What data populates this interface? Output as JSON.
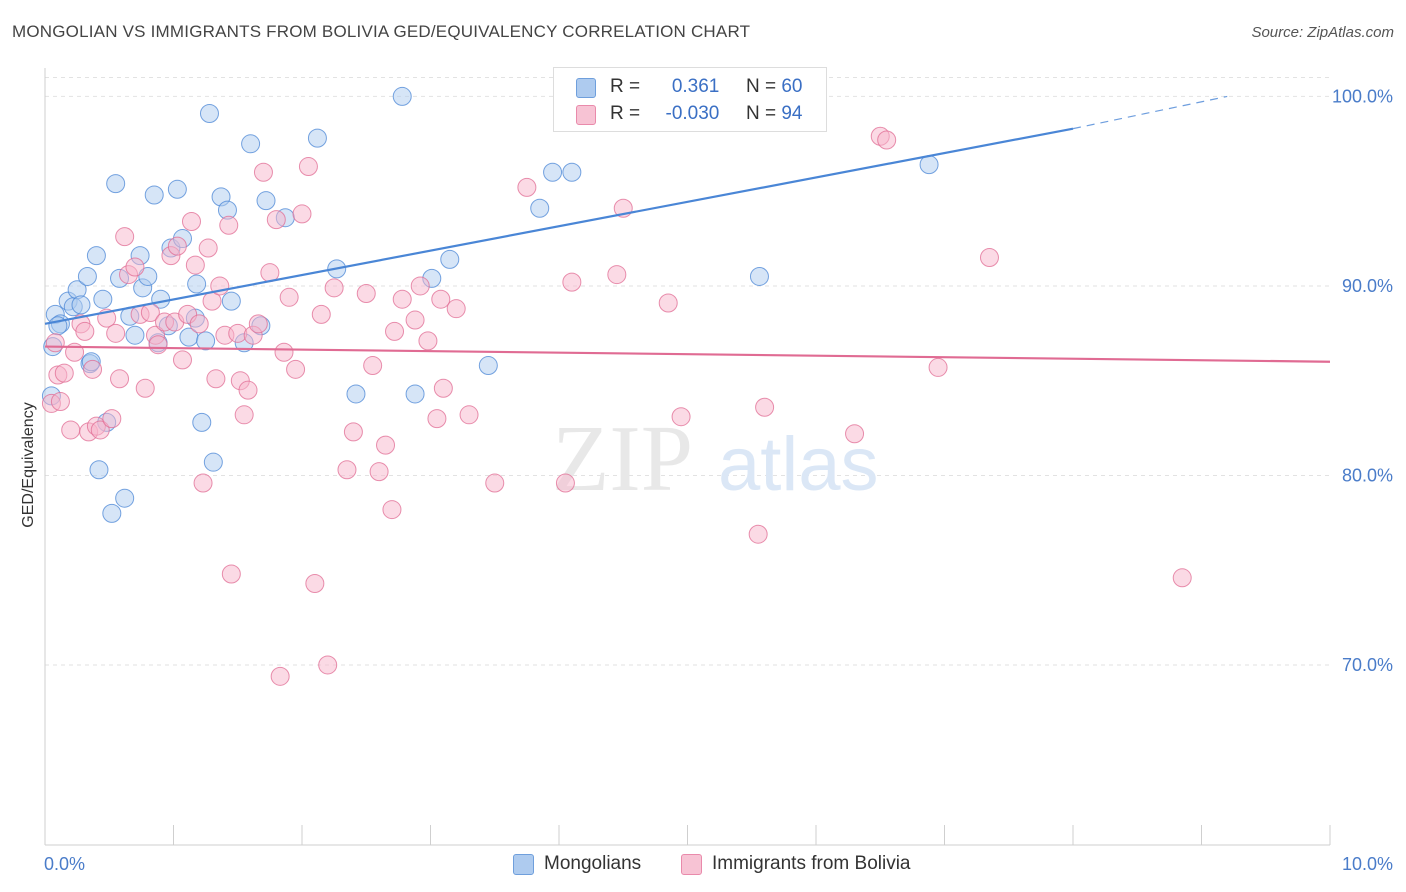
{
  "title": "MONGOLIAN VS IMMIGRANTS FROM BOLIVIA GED/EQUIVALENCY CORRELATION CHART",
  "source": "Source: ZipAtlas.com",
  "watermark": {
    "zip": "ZIP",
    "atlas": "atlas"
  },
  "legend": {
    "rows": [
      {
        "r_label": "R = ",
        "r_value": "0.361",
        "n_label": "N = ",
        "n_value": "60",
        "color": "#aecbef"
      },
      {
        "r_label": "R = ",
        "r_value": "-0.030",
        "n_label": "N = ",
        "n_value": "94",
        "color": "#f7b6cb"
      }
    ],
    "bottom": [
      {
        "label": "Mongolians",
        "color": "#aecbef"
      },
      {
        "label": "Immigrants from Bolivia",
        "color": "#f7b6cb"
      }
    ]
  },
  "chart_data": {
    "type": "scatter",
    "title": "MONGOLIAN VS IMMIGRANTS FROM BOLIVIA GED/EQUIVALENCY CORRELATION CHART",
    "xlabel": "",
    "ylabel": "GED/Equivalency",
    "xlim": [
      0,
      10
    ],
    "ylim": [
      60.5,
      101.5
    ],
    "x_tick_labels": [
      "0.0%",
      "10.0%"
    ],
    "y_ticks": [
      70,
      80,
      90,
      100
    ],
    "y_tick_labels": [
      "70.0%",
      "80.0%",
      "90.0%",
      "100.0%"
    ],
    "series": [
      {
        "name": "Mongolians",
        "color": "#4a86d6",
        "fill": "#aecbef",
        "trend": {
          "x": [
            0,
            8.0
          ],
          "y": [
            88.0,
            98.3
          ],
          "dash_to": [
            9.2,
            100.0
          ]
        },
        "points": [
          [
            0.05,
            84.2
          ],
          [
            0.08,
            88.5
          ],
          [
            0.12,
            88.0
          ],
          [
            0.18,
            89.2
          ],
          [
            0.22,
            88.9
          ],
          [
            0.25,
            89.8
          ],
          [
            0.28,
            89.0
          ],
          [
            0.33,
            90.5
          ],
          [
            0.35,
            85.9
          ],
          [
            0.4,
            91.6
          ],
          [
            0.42,
            80.3
          ],
          [
            0.45,
            89.3
          ],
          [
            0.48,
            82.8
          ],
          [
            0.52,
            78.0
          ],
          [
            0.55,
            95.4
          ],
          [
            0.58,
            90.4
          ],
          [
            0.62,
            78.8
          ],
          [
            0.66,
            88.4
          ],
          [
            0.7,
            87.4
          ],
          [
            0.74,
            91.6
          ],
          [
            0.76,
            89.9
          ],
          [
            0.8,
            90.5
          ],
          [
            0.85,
            94.8
          ],
          [
            0.88,
            87.0
          ],
          [
            0.9,
            89.3
          ],
          [
            0.96,
            87.9
          ],
          [
            0.98,
            92.0
          ],
          [
            1.03,
            95.1
          ],
          [
            1.07,
            92.5
          ],
          [
            1.12,
            87.3
          ],
          [
            1.17,
            88.3
          ],
          [
            1.18,
            90.1
          ],
          [
            1.22,
            82.8
          ],
          [
            1.25,
            87.1
          ],
          [
            1.28,
            99.1
          ],
          [
            1.31,
            80.7
          ],
          [
            1.37,
            94.7
          ],
          [
            1.42,
            94.0
          ],
          [
            1.45,
            89.2
          ],
          [
            1.55,
            87.0
          ],
          [
            1.6,
            97.5
          ],
          [
            1.68,
            87.9
          ],
          [
            1.72,
            94.5
          ],
          [
            1.87,
            93.6
          ],
          [
            2.12,
            97.8
          ],
          [
            2.27,
            90.9
          ],
          [
            2.42,
            84.3
          ],
          [
            2.78,
            100.0
          ],
          [
            2.88,
            84.3
          ],
          [
            3.01,
            90.4
          ],
          [
            3.15,
            91.4
          ],
          [
            3.45,
            85.8
          ],
          [
            3.85,
            94.1
          ],
          [
            3.95,
            96.0
          ],
          [
            4.1,
            96.0
          ],
          [
            5.56,
            90.5
          ],
          [
            6.88,
            96.4
          ],
          [
            0.06,
            86.8
          ],
          [
            0.1,
            87.9
          ],
          [
            0.36,
            86.0
          ]
        ]
      },
      {
        "name": "Immigrants from Bolivia",
        "color": "#e06b93",
        "fill": "#f7b6cb",
        "trend": {
          "x": [
            0,
            10
          ],
          "y": [
            86.8,
            86.0
          ]
        },
        "points": [
          [
            0.05,
            83.8
          ],
          [
            0.08,
            87.0
          ],
          [
            0.1,
            85.3
          ],
          [
            0.15,
            85.4
          ],
          [
            0.2,
            82.4
          ],
          [
            0.23,
            86.5
          ],
          [
            0.28,
            88.0
          ],
          [
            0.31,
            87.6
          ],
          [
            0.34,
            82.3
          ],
          [
            0.37,
            85.6
          ],
          [
            0.4,
            82.6
          ],
          [
            0.43,
            82.4
          ],
          [
            0.48,
            88.3
          ],
          [
            0.52,
            83.0
          ],
          [
            0.55,
            87.5
          ],
          [
            0.58,
            85.1
          ],
          [
            0.62,
            92.6
          ],
          [
            0.65,
            90.6
          ],
          [
            0.7,
            91.0
          ],
          [
            0.74,
            88.5
          ],
          [
            0.78,
            84.6
          ],
          [
            0.82,
            88.6
          ],
          [
            0.86,
            87.4
          ],
          [
            0.88,
            86.9
          ],
          [
            0.93,
            88.1
          ],
          [
            0.98,
            91.6
          ],
          [
            1.01,
            88.1
          ],
          [
            1.03,
            92.1
          ],
          [
            1.07,
            86.1
          ],
          [
            1.11,
            88.5
          ],
          [
            1.14,
            93.4
          ],
          [
            1.17,
            91.1
          ],
          [
            1.2,
            88.0
          ],
          [
            1.23,
            79.6
          ],
          [
            1.27,
            92.0
          ],
          [
            1.3,
            89.2
          ],
          [
            1.33,
            85.1
          ],
          [
            1.36,
            90.0
          ],
          [
            1.4,
            87.4
          ],
          [
            1.43,
            93.2
          ],
          [
            1.45,
            74.8
          ],
          [
            1.5,
            87.5
          ],
          [
            1.52,
            85.0
          ],
          [
            1.55,
            83.2
          ],
          [
            1.58,
            84.5
          ],
          [
            1.62,
            87.4
          ],
          [
            1.66,
            88.0
          ],
          [
            1.7,
            96.0
          ],
          [
            1.75,
            90.7
          ],
          [
            1.8,
            93.5
          ],
          [
            1.83,
            69.4
          ],
          [
            1.86,
            86.5
          ],
          [
            1.9,
            89.4
          ],
          [
            1.95,
            85.6
          ],
          [
            2.0,
            93.8
          ],
          [
            2.05,
            96.3
          ],
          [
            2.1,
            74.3
          ],
          [
            2.15,
            88.5
          ],
          [
            2.2,
            70.0
          ],
          [
            2.25,
            89.9
          ],
          [
            2.35,
            80.3
          ],
          [
            2.4,
            82.3
          ],
          [
            2.5,
            89.6
          ],
          [
            2.55,
            85.8
          ],
          [
            2.6,
            80.2
          ],
          [
            2.65,
            81.6
          ],
          [
            2.7,
            78.2
          ],
          [
            2.72,
            87.6
          ],
          [
            2.78,
            89.3
          ],
          [
            2.88,
            88.2
          ],
          [
            2.92,
            90.0
          ],
          [
            2.98,
            87.1
          ],
          [
            3.05,
            83.0
          ],
          [
            3.08,
            89.3
          ],
          [
            3.1,
            84.6
          ],
          [
            3.2,
            88.8
          ],
          [
            3.3,
            83.2
          ],
          [
            3.5,
            79.6
          ],
          [
            3.75,
            95.2
          ],
          [
            4.05,
            79.6
          ],
          [
            4.1,
            90.2
          ],
          [
            4.45,
            90.6
          ],
          [
            4.5,
            94.1
          ],
          [
            4.85,
            89.1
          ],
          [
            4.95,
            83.1
          ],
          [
            5.55,
            76.9
          ],
          [
            5.6,
            83.6
          ],
          [
            6.3,
            82.2
          ],
          [
            6.5,
            97.9
          ],
          [
            6.55,
            97.7
          ],
          [
            6.95,
            85.7
          ],
          [
            7.35,
            91.5
          ],
          [
            8.85,
            74.6
          ],
          [
            0.12,
            83.9
          ]
        ]
      }
    ]
  }
}
